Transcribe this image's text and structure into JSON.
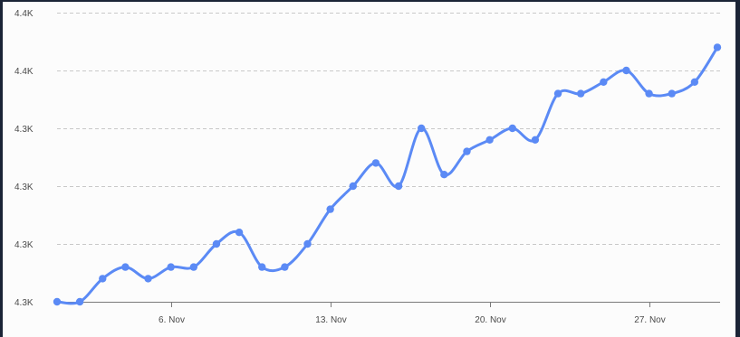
{
  "chart_data": {
    "type": "line",
    "title": "",
    "xlabel": "",
    "ylabel": "",
    "x_ticks": [
      {
        "label": "6. Nov",
        "day": 6
      },
      {
        "label": "13. Nov",
        "day": 13
      },
      {
        "label": "20. Nov",
        "day": 20
      },
      {
        "label": "27. Nov",
        "day": 27
      }
    ],
    "y_ticks": [
      {
        "label": "4.3K",
        "level": 0
      },
      {
        "label": "4.3K",
        "level": 1
      },
      {
        "label": "4.3K",
        "level": 2
      },
      {
        "label": "4.3K",
        "level": 3
      },
      {
        "label": "4.4K",
        "level": 4
      },
      {
        "label": "4.4K",
        "level": 5
      }
    ],
    "x_range_days": [
      1,
      30
    ],
    "y_range_levels": [
      0,
      5
    ],
    "grid": "horizontal dashed",
    "line_color": "#5b8af5",
    "points": [
      {
        "day": 1,
        "level": 0.0
      },
      {
        "day": 2,
        "level": 0.0
      },
      {
        "day": 3,
        "level": 0.4
      },
      {
        "day": 4,
        "level": 0.6
      },
      {
        "day": 5,
        "level": 0.4
      },
      {
        "day": 6,
        "level": 0.6
      },
      {
        "day": 7,
        "level": 0.6
      },
      {
        "day": 8,
        "level": 1.0
      },
      {
        "day": 9,
        "level": 1.2
      },
      {
        "day": 10,
        "level": 0.6
      },
      {
        "day": 11,
        "level": 0.6
      },
      {
        "day": 12,
        "level": 1.0
      },
      {
        "day": 13,
        "level": 1.6
      },
      {
        "day": 14,
        "level": 2.0
      },
      {
        "day": 15,
        "level": 2.4
      },
      {
        "day": 16,
        "level": 2.0
      },
      {
        "day": 17,
        "level": 3.0
      },
      {
        "day": 18,
        "level": 2.2
      },
      {
        "day": 19,
        "level": 2.6
      },
      {
        "day": 20,
        "level": 2.8
      },
      {
        "day": 21,
        "level": 3.0
      },
      {
        "day": 22,
        "level": 2.8
      },
      {
        "day": 23,
        "level": 3.6
      },
      {
        "day": 24,
        "level": 3.6
      },
      {
        "day": 25,
        "level": 3.8
      },
      {
        "day": 26,
        "level": 4.0
      },
      {
        "day": 27,
        "level": 3.6
      },
      {
        "day": 28,
        "level": 3.6
      },
      {
        "day": 29,
        "level": 3.8
      },
      {
        "day": 30,
        "level": 4.4
      }
    ]
  }
}
